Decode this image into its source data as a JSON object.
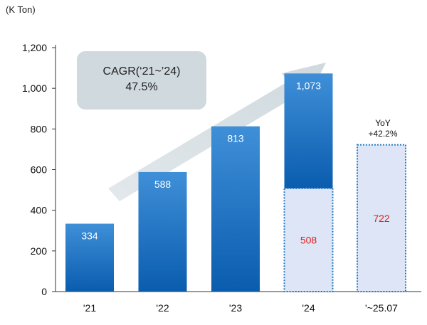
{
  "unit_label": "(K Ton)",
  "cagr": {
    "line1": "CAGR(‘21~’24)",
    "line2": "47.5%"
  },
  "yoy": {
    "line1": "YoY",
    "line2": "+42.2%"
  },
  "colors": {
    "bar_top": "#3f8fd8",
    "bar_bottom": "#0a5cae",
    "highlight_fill": "#dde5f6",
    "highlight_border": "#1f7ac4",
    "red": "#e0201b",
    "arrow": "#cfd9de"
  },
  "chart_data": {
    "type": "bar",
    "categories": [
      "'21",
      "'22",
      "'23",
      "'24",
      "'~25.07"
    ],
    "series": [
      {
        "values": [
          334,
          588,
          813,
          565,
          null
        ]
      },
      {
        "values": [
          null,
          null,
          null,
          508,
          722
        ]
      }
    ],
    "data_labels": [
      "334",
      "588",
      "813",
      "1,073",
      "722"
    ],
    "totals": [
      334,
      588,
      813,
      1073,
      722
    ],
    "highlight_labels": [
      {
        "category": "'24",
        "text": "508"
      },
      {
        "category": "'~25.07",
        "text": "722"
      }
    ],
    "yticks": [
      "0",
      "200",
      "400",
      "600",
      "800",
      "1,000",
      "1,200"
    ],
    "ylim": [
      0,
      1200
    ],
    "xlabel": "",
    "ylabel": "",
    "title": "",
    "grid": false
  }
}
